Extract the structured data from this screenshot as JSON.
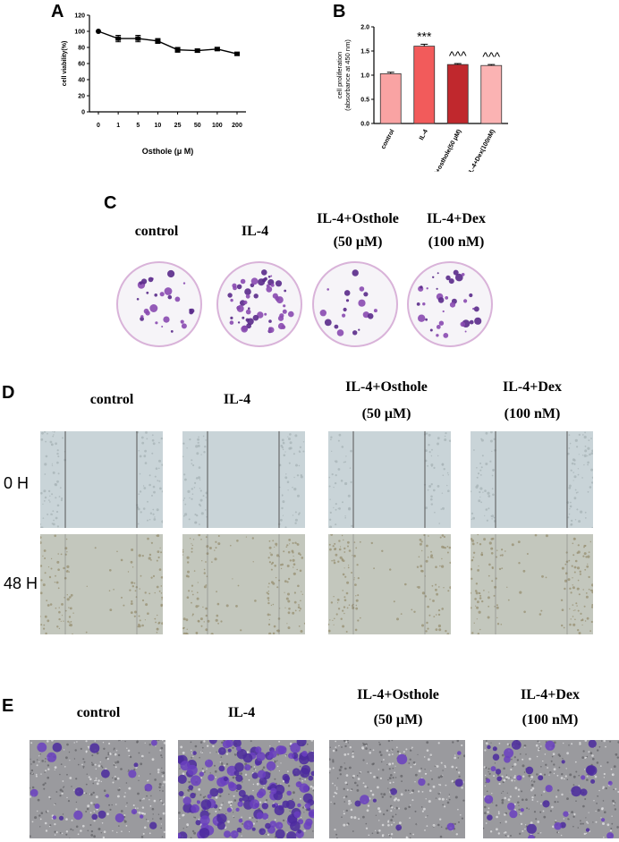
{
  "panel_labels": {
    "a": "A",
    "b": "B",
    "c": "C",
    "d": "D",
    "e": "E"
  },
  "chart_data": [
    {
      "type": "line",
      "panel": "A",
      "xlabel": "Osthole (μ M)",
      "ylabel": "cell viability(%)",
      "categories": [
        "0",
        "1",
        "5",
        "10",
        "25",
        "50",
        "100",
        "200"
      ],
      "values": [
        100,
        91,
        91,
        88,
        77,
        76,
        78,
        72
      ],
      "errors": [
        0,
        4,
        4,
        3,
        3,
        2,
        2,
        2
      ],
      "ylim": [
        0,
        120
      ],
      "yticks": [
        "0",
        "20",
        "40",
        "60",
        "80",
        "100",
        "120"
      ],
      "color": "#000000"
    },
    {
      "type": "bar",
      "panel": "B",
      "ylabel": "cell proliferation\n(absorbance at 450 nm)",
      "categories": [
        "control",
        "IL-4",
        "IL-4+osthole(50 μM)",
        "IL-4+Dex(100nM)"
      ],
      "values": [
        1.03,
        1.6,
        1.22,
        1.2
      ],
      "errors": [
        0.03,
        0.04,
        0.02,
        0.02
      ],
      "annotations": [
        "",
        "***",
        "^^^",
        "^^^"
      ],
      "colors": [
        "#f9a3a3",
        "#f25b5b",
        "#c0282d",
        "#fbb3b3"
      ],
      "ylim": [
        0,
        2.0
      ],
      "yticks": [
        "0.0",
        "0.5",
        "1.0",
        "1.5",
        "2.0"
      ]
    }
  ],
  "panel_c": {
    "labels": [
      "control",
      "IL-4",
      "IL-4+Osthole",
      "IL-4+Dex"
    ],
    "sublabels": [
      "",
      "",
      "(50 μM)",
      "(100 nM)"
    ]
  },
  "panel_d": {
    "labels": [
      "control",
      "IL-4",
      "IL-4+Osthole",
      "IL-4+Dex"
    ],
    "sublabels": [
      "",
      "",
      "(50 μM)",
      "(100 nM)"
    ],
    "rows": [
      "0 H",
      "48 H"
    ]
  },
  "panel_e": {
    "labels": [
      "control",
      "IL-4",
      "IL-4+Osthole",
      "IL-4+Dex"
    ],
    "sublabels": [
      "",
      "",
      "(50 μM)",
      "(100 nM)"
    ]
  }
}
